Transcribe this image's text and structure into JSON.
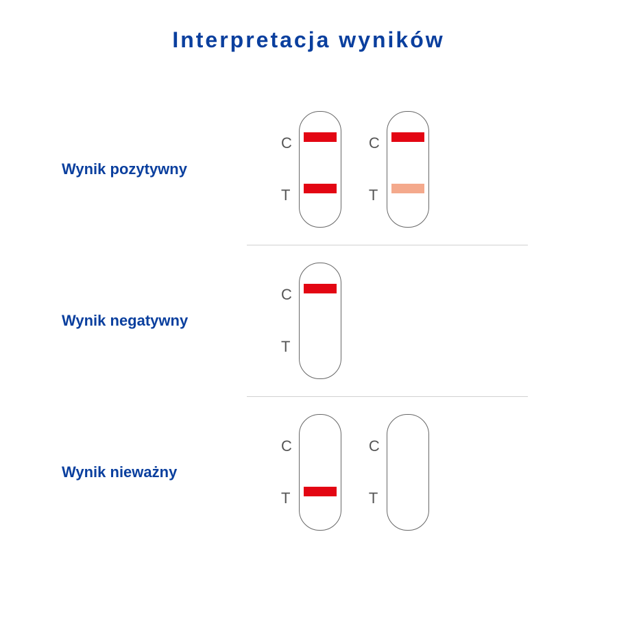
{
  "colors": {
    "title_text": "#0a3f9e",
    "label_text": "#0a3f9e",
    "marker_text": "#555555",
    "strip_border": "#666666",
    "divider": "#d0d0d0",
    "band_strong": "#e30613",
    "band_faint": "#f4a98c",
    "background": "#ffffff"
  },
  "title": "Interpretacja wyników",
  "marker_c": "C",
  "marker_t": "T",
  "rows": [
    {
      "label": "Wynik pozytywny",
      "strips": [
        {
          "c_visible": true,
          "c_color": "band_strong",
          "t_visible": true,
          "t_color": "band_strong"
        },
        {
          "c_visible": true,
          "c_color": "band_strong",
          "t_visible": true,
          "t_color": "band_faint"
        }
      ]
    },
    {
      "label": "Wynik negatywny",
      "strips": [
        {
          "c_visible": true,
          "c_color": "band_strong",
          "t_visible": false
        }
      ]
    },
    {
      "label": "Wynik nieważny",
      "strips": [
        {
          "c_visible": false,
          "t_visible": true,
          "t_color": "band_strong"
        },
        {
          "c_visible": false,
          "t_visible": false
        }
      ]
    }
  ]
}
